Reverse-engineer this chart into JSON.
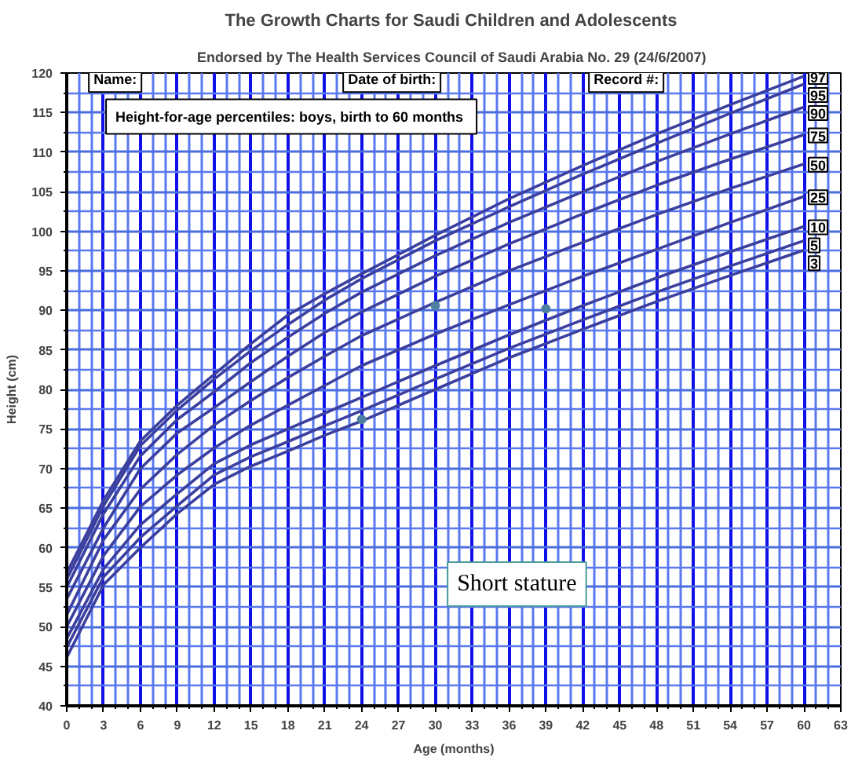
{
  "chart_data": {
    "type": "line",
    "title": "The Growth Charts for Saudi Children  and Adolescents",
    "subtitle": "Endorsed by The Health Services  Council of Saudi Arabia No. 29 (24/6/2007)",
    "xlabel": "Age (months)",
    "ylabel": "Height (cm)",
    "x": [
      0,
      3,
      6,
      9,
      12,
      15,
      18,
      21,
      24,
      30,
      36,
      42,
      48,
      54,
      60
    ],
    "series": [
      {
        "name": "3",
        "color": "#3b3f9e",
        "values": [
          46.1,
          55.3,
          60.0,
          64.3,
          68.0,
          70.3,
          72.2,
          74.2,
          76.0,
          80.0,
          84.0,
          87.6,
          91.1,
          94.4,
          97.6
        ]
      },
      {
        "name": "5",
        "color": "#3b3f9e",
        "values": [
          47.4,
          56.3,
          61.3,
          65.3,
          69.2,
          71.5,
          73.4,
          75.4,
          77.3,
          81.3,
          85.2,
          88.8,
          92.3,
          95.6,
          98.8
        ]
      },
      {
        "name": "10",
        "color": "#3b3f9e",
        "values": [
          48.5,
          57.3,
          62.9,
          66.8,
          70.6,
          73.0,
          75.0,
          77.0,
          79.0,
          83.0,
          86.9,
          90.6,
          94.1,
          97.4,
          100.6
        ]
      },
      {
        "name": "25",
        "color": "#3b3f9e",
        "values": [
          50.0,
          59.0,
          65.2,
          69.2,
          72.6,
          75.5,
          78.0,
          80.5,
          83.0,
          87.0,
          90.7,
          94.3,
          97.7,
          101.1,
          104.4
        ]
      },
      {
        "name": "50",
        "color": "#3b3f9e",
        "values": [
          51.5,
          61.0,
          67.4,
          71.8,
          75.5,
          78.6,
          81.5,
          84.2,
          86.8,
          91.0,
          95.0,
          98.6,
          102.1,
          105.4,
          108.5
        ]
      },
      {
        "name": "75",
        "color": "#3b3f9e",
        "values": [
          53.5,
          62.5,
          70.0,
          74.5,
          77.7,
          81.0,
          84.2,
          87.2,
          89.8,
          94.3,
          98.4,
          102.2,
          105.8,
          109.1,
          112.2
        ]
      },
      {
        "name": "90",
        "color": "#3b3f9e",
        "values": [
          55.0,
          64.3,
          71.6,
          76.2,
          79.7,
          83.4,
          86.6,
          89.6,
          92.3,
          96.9,
          101.1,
          105.0,
          108.8,
          112.3,
          115.7
        ]
      },
      {
        "name": "95",
        "color": "#3b3f9e",
        "values": [
          56.0,
          65.3,
          72.9,
          77.4,
          81.3,
          84.9,
          88.2,
          91.3,
          94.0,
          98.8,
          103.1,
          107.2,
          111.1,
          114.9,
          118.6
        ]
      },
      {
        "name": "97",
        "color": "#3b3f9e",
        "values": [
          56.8,
          66.0,
          73.5,
          78.0,
          81.9,
          85.8,
          89.4,
          92.1,
          94.6,
          99.5,
          104.1,
          108.3,
          112.3,
          116.0,
          119.6
        ]
      },
      {
        "type": "scatter",
        "marker": "circle",
        "color": "#4f7fa0",
        "x": [
          24,
          30,
          39
        ],
        "values": [
          76.2,
          90.6,
          90.2
        ]
      }
    ],
    "xlim": [
      0,
      63
    ],
    "ylim": [
      40,
      120
    ],
    "xticks": [
      0,
      {
        "value": 1,
        "label": null
      },
      {
        "value": 2,
        "label": null
      },
      3,
      {
        "value": 4,
        "label": null
      },
      {
        "value": 5,
        "label": null
      },
      6,
      {
        "value": 7,
        "label": null
      },
      {
        "value": 8,
        "label": null
      },
      9,
      {
        "value": 10,
        "label": null
      },
      {
        "value": 11,
        "label": null
      },
      12,
      {
        "value": 13,
        "label": null
      },
      {
        "value": 14,
        "label": null
      },
      15,
      {
        "value": 16,
        "label": null
      },
      {
        "value": 17,
        "label": null
      },
      18,
      {
        "value": 19,
        "label": null
      },
      {
        "value": 20,
        "label": null
      },
      21,
      {
        "value": 22,
        "label": null
      },
      {
        "value": 23,
        "label": null
      },
      24,
      {
        "value": 25,
        "label": null
      },
      {
        "value": 26,
        "label": null
      },
      27,
      {
        "value": 28,
        "label": null
      },
      {
        "value": 29,
        "label": null
      },
      30,
      {
        "value": 31,
        "label": null
      },
      {
        "value": 32,
        "label": null
      },
      33,
      {
        "value": 34,
        "label": null
      },
      {
        "value": 35,
        "label": null
      },
      36,
      {
        "value": 37,
        "label": null
      },
      {
        "value": 38,
        "label": null
      },
      39,
      {
        "value": 40,
        "label": null
      },
      {
        "value": 41,
        "label": null
      },
      42,
      {
        "value": 43,
        "label": null
      },
      {
        "value": 44,
        "label": null
      },
      45,
      {
        "value": 46,
        "label": null
      },
      {
        "value": 47,
        "label": null
      },
      48,
      {
        "value": 49,
        "label": null
      },
      {
        "value": 50,
        "label": null
      },
      51,
      {
        "value": 52,
        "label": null
      },
      {
        "value": 53,
        "label": null
      },
      54,
      {
        "value": 55,
        "label": null
      },
      {
        "value": 56,
        "label": null
      },
      57,
      {
        "value": 58,
        "label": null
      },
      {
        "value": 59,
        "label": null
      },
      60,
      {
        "value": 61,
        "label": null
      },
      {
        "value": 62,
        "label": null
      },
      63
    ],
    "yticks": [
      40,
      {
        "value": 42.5,
        "label": null
      },
      45,
      {
        "value": 47.5,
        "label": null
      },
      50,
      {
        "value": 52.5,
        "label": null
      },
      55,
      {
        "value": 57.5,
        "label": null
      },
      60,
      {
        "value": 62.5,
        "label": null
      },
      65,
      {
        "value": 67.5,
        "label": null
      },
      70,
      {
        "value": 72.5,
        "label": null
      },
      75,
      {
        "value": 77.5,
        "label": null
      },
      80,
      {
        "value": 82.5,
        "label": null
      },
      85,
      {
        "value": 87.5,
        "label": null
      },
      90,
      {
        "value": 92.5,
        "label": null
      },
      95,
      {
        "value": 97.5,
        "label": null
      },
      100,
      {
        "value": 102.5,
        "label": null
      },
      105,
      {
        "value": 107.5,
        "label": null
      },
      110,
      {
        "value": 112.5,
        "label": null
      },
      115,
      {
        "value": 117.5,
        "label": null
      },
      120
    ],
    "grid": true,
    "annotations": [
      "Name:",
      "Date of birth:",
      "Record #:",
      "Height-for-age percentiles:  boys, birth to 60 months",
      "Short stature"
    ]
  }
}
